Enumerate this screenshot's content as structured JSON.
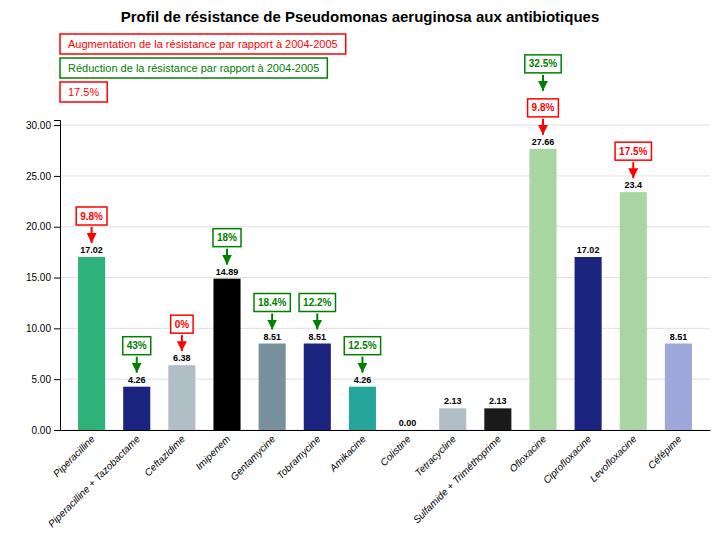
{
  "chart_data": {
    "type": "bar",
    "title": "Profil de résistance de Pseudomonas aeruginosa aux antibiotiques",
    "categories": [
      "Piperacilline",
      "Piperacilline +\nTazobactame",
      "Ceftazidime",
      "Imipenem",
      "Gentamycine",
      "Tobramycine",
      "Amikacine",
      "Colistine",
      "Tetracycline",
      "Sulfamide +\nTriméthoprime",
      "Ofloxacine",
      "Ciprofloxacine",
      "Levofloxacine",
      "Céfépime"
    ],
    "values": [
      17.02,
      4.26,
      6.38,
      14.89,
      8.51,
      8.51,
      4.26,
      0.0,
      2.13,
      2.13,
      27.66,
      17.02,
      23.4,
      8.51
    ],
    "value_labels": [
      "17.02",
      "4.26",
      "6.38",
      "14.89",
      "8.51",
      "8.51",
      "4.26",
      "0.00",
      "2.13",
      "2.13",
      "27.66",
      "17.02",
      "23.4",
      "8.51"
    ],
    "data_labels": true,
    "colors": [
      "#2db37a",
      "#1a237e",
      "#b0bec5",
      "#000000",
      "#78909c",
      "#1a237e",
      "#26a69a",
      "#e8e8e8",
      "#b0bec5",
      "#1a1a1a",
      "#a8d5a2",
      "#1a237e",
      "#a8d5a2",
      "#9fa8da"
    ],
    "ylim": [
      0,
      30.5
    ],
    "yticks": [
      {
        "value": 0,
        "label": "0.00"
      },
      {
        "value": 5,
        "label": "5.00"
      },
      {
        "value": 10,
        "label": "10.00"
      },
      {
        "value": 15,
        "label": "15.00"
      },
      {
        "value": 20,
        "label": "20.00"
      },
      {
        "value": 25,
        "label": "25.00"
      },
      {
        "value": 30,
        "label": "30.00"
      }
    ],
    "grid": true,
    "annotations": [
      {
        "text": "Augmentation de la résistance par rapport à 2004-2005",
        "color": "red"
      },
      {
        "text": "Réduction de la résistance par rapport à 2004-2005",
        "color": "green"
      },
      {
        "text": "17.5%",
        "color": "red"
      },
      {
        "text": "9.8%",
        "color": "red",
        "category": "Piperacilline"
      },
      {
        "text": "43%",
        "color": "green",
        "category": "Piperacilline +\nTazobactame"
      },
      {
        "text": "0%",
        "color": "red",
        "category": "Ceftazidime"
      },
      {
        "text": "18%",
        "color": "green",
        "category": "Imipenem"
      },
      {
        "text": "18.4%",
        "color": "green",
        "category": "Gentamycine"
      },
      {
        "text": "12.2%",
        "color": "green",
        "category": "Tobramycine"
      },
      {
        "text": "12.5%",
        "color": "green",
        "category": "Amikacine"
      },
      {
        "text": "32.5%",
        "color": "green",
        "category": "Ofloxacine"
      },
      {
        "text": "9.8%",
        "color": "red",
        "category": "Ofloxacine"
      },
      {
        "text": "17.5%",
        "color": "red",
        "category": "Levofloxacine"
      }
    ]
  }
}
